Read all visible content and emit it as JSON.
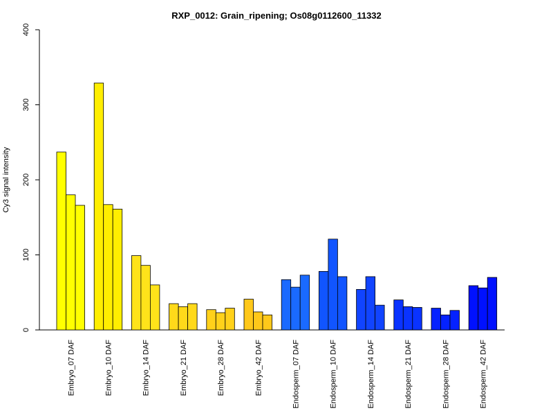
{
  "chart_data": {
    "type": "bar",
    "title": "RXP_0012: Grain_ripening; Os08g0112600_11332",
    "xlabel": "",
    "ylabel": "Cy3 signal intensity",
    "ylim": [
      0,
      400
    ],
    "yticks": [
      0,
      100,
      200,
      300,
      400
    ],
    "grid": false,
    "legend": "none",
    "categories": [
      "Embryo_07 DAF",
      "Embryo_10 DAF",
      "Embryo_14 DAF",
      "Embryo_21 DAF",
      "Embryo_28 DAF",
      "Embryo_42 DAF",
      "Endosperm_07 DAF",
      "Endosperm_10 DAF",
      "Endosperm_14 DAF",
      "Endosperm_21 DAF",
      "Endosperm_28 DAF",
      "Endosperm_42 DAF"
    ],
    "colors": [
      "#ffff00",
      "#ffee00",
      "#ffe31a",
      "#ffd91a",
      "#ffd11a",
      "#ffc81a",
      "#1a6aff",
      "#1155ff",
      "#1144ff",
      "#0a33ff",
      "#0522ff",
      "#0011ff"
    ],
    "groups": [
      {
        "category": "Embryo_07 DAF",
        "values": [
          237,
          180,
          166
        ]
      },
      {
        "category": "Embryo_10 DAF",
        "values": [
          329,
          167,
          161
        ]
      },
      {
        "category": "Embryo_14 DAF",
        "values": [
          99,
          86,
          60
        ]
      },
      {
        "category": "Embryo_21 DAF",
        "values": [
          35,
          31,
          35
        ]
      },
      {
        "category": "Embryo_28 DAF",
        "values": [
          27,
          23,
          29
        ]
      },
      {
        "category": "Embryo_42 DAF",
        "values": [
          41,
          24,
          20
        ]
      },
      {
        "category": "Endosperm_07 DAF",
        "values": [
          67,
          57,
          73
        ]
      },
      {
        "category": "Endosperm_10 DAF",
        "values": [
          78,
          121,
          71
        ]
      },
      {
        "category": "Endosperm_14 DAF",
        "values": [
          54,
          71,
          33
        ]
      },
      {
        "category": "Endosperm_21 DAF",
        "values": [
          40,
          31,
          30
        ]
      },
      {
        "category": "Endosperm_28 DAF",
        "values": [
          29,
          20,
          26
        ]
      },
      {
        "category": "Endosperm_42 DAF",
        "values": [
          59,
          56,
          70
        ]
      }
    ]
  }
}
